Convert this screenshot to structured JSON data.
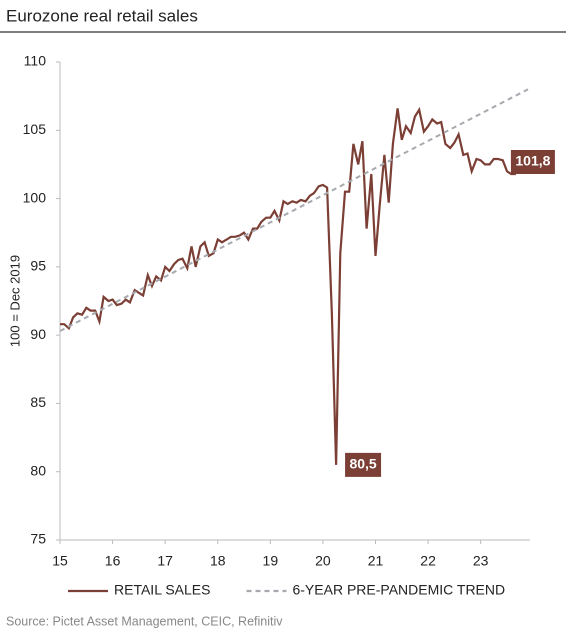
{
  "chart_data": {
    "type": "line",
    "title": "Eurozone real retail sales",
    "ylabel": "100 = Dec 2019",
    "source": "Source: Pictet Asset Management, CEIC, Refinitiv",
    "xlim": [
      15,
      23.9
    ],
    "xticks": [
      15,
      16,
      17,
      18,
      19,
      20,
      21,
      22,
      23
    ],
    "ylim": [
      75,
      110
    ],
    "yticks": [
      75,
      80,
      85,
      90,
      95,
      100,
      105,
      110
    ],
    "grid": false,
    "legend": "bottom",
    "series": [
      {
        "name": "RETAIL SALES",
        "color": "#7b3f35",
        "style": "solid",
        "x": [
          15,
          15.08,
          15.17,
          15.25,
          15.33,
          15.42,
          15.5,
          15.58,
          15.67,
          15.75,
          15.83,
          15.92,
          16,
          16.08,
          16.17,
          16.25,
          16.33,
          16.42,
          16.5,
          16.58,
          16.67,
          16.75,
          16.83,
          16.92,
          17,
          17.08,
          17.17,
          17.25,
          17.33,
          17.42,
          17.5,
          17.58,
          17.67,
          17.75,
          17.83,
          17.92,
          18,
          18.08,
          18.17,
          18.25,
          18.33,
          18.42,
          18.5,
          18.58,
          18.67,
          18.75,
          18.83,
          18.92,
          19,
          19.08,
          19.17,
          19.25,
          19.33,
          19.42,
          19.5,
          19.58,
          19.67,
          19.75,
          19.83,
          19.92,
          20,
          20.08,
          20.17,
          20.25,
          20.33,
          20.42,
          20.5,
          20.58,
          20.67,
          20.75,
          20.83,
          20.92,
          21,
          21.08,
          21.17,
          21.25,
          21.33,
          21.42,
          21.5,
          21.58,
          21.67,
          21.75,
          21.83,
          21.92,
          22,
          22.08,
          22.17,
          22.25,
          22.33,
          22.42,
          22.5,
          22.58,
          22.67,
          22.75,
          22.83,
          22.92,
          23,
          23.08,
          23.17,
          23.25,
          23.33,
          23.42,
          23.5,
          23.58,
          23.67
        ],
        "values": [
          90.8,
          90.8,
          90.5,
          91.3,
          91.6,
          91.5,
          92.0,
          91.8,
          91.8,
          91.0,
          92.8,
          92.5,
          92.6,
          92.2,
          92.3,
          92.6,
          92.4,
          93.3,
          93.1,
          92.9,
          94.4,
          93.6,
          94.3,
          94.0,
          95.0,
          94.7,
          95.2,
          95.5,
          95.6,
          94.9,
          96.5,
          95.0,
          96.5,
          96.8,
          95.8,
          96.0,
          97.0,
          96.8,
          97.0,
          97.2,
          97.2,
          97.3,
          97.5,
          97.0,
          97.8,
          97.8,
          98.3,
          98.6,
          98.6,
          99.1,
          98.4,
          99.8,
          99.6,
          99.8,
          99.7,
          99.9,
          99.8,
          100.2,
          100.4,
          100.9,
          101.0,
          100.8,
          91.5,
          80.5,
          96.0,
          100.5,
          100.5,
          104.0,
          102.5,
          104.2,
          97.8,
          101.8,
          95.8,
          99.5,
          103.2,
          99.7,
          104.0,
          106.6,
          104.3,
          105.3,
          104.8,
          106.0,
          106.5,
          104.9,
          105.3,
          105.8,
          105.5,
          105.6,
          104.0,
          103.7,
          104.1,
          104.7,
          103.2,
          103.3,
          102.0,
          102.9,
          102.8,
          102.5,
          102.5,
          102.9,
          102.9,
          102.8,
          102.0,
          101.8,
          101.8
        ],
        "value_labels": [
          null,
          null,
          null,
          null,
          null,
          null,
          null,
          null,
          null,
          null,
          null,
          null,
          null,
          null,
          null,
          null,
          null,
          null,
          null,
          null,
          null,
          null,
          null,
          null,
          null,
          null,
          null,
          null,
          null,
          null,
          null,
          null,
          null,
          null,
          null,
          null,
          null,
          null,
          null,
          null,
          null,
          null,
          null,
          null,
          null,
          null,
          null,
          null,
          null,
          null,
          null,
          null,
          null,
          null,
          null,
          null,
          null,
          null,
          null,
          null,
          null,
          null,
          null,
          "80,5",
          null,
          null,
          null,
          null,
          null,
          null,
          null,
          null,
          null,
          null,
          null,
          null,
          null,
          null,
          null,
          null,
          null,
          null,
          null,
          null,
          null,
          null,
          null,
          null,
          null,
          null,
          null,
          null,
          null,
          null,
          null,
          null,
          null,
          null,
          null,
          null,
          null,
          null,
          null,
          null,
          "101,8"
        ]
      },
      {
        "name": "6-YEAR PRE-PANDEMIC TREND",
        "color": "#a6a9ae",
        "style": "dashed",
        "x": [
          15,
          23.9
        ],
        "values": [
          90.3,
          108.0
        ]
      }
    ]
  }
}
